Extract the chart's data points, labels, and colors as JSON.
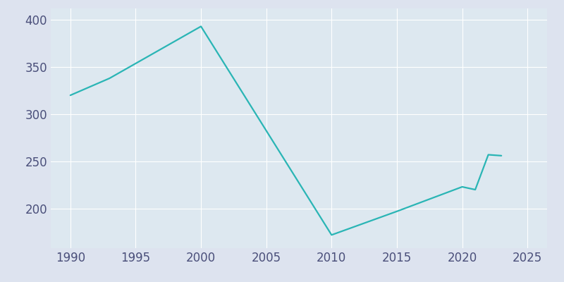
{
  "years": [
    1990,
    1993,
    2000,
    2010,
    2015,
    2020,
    2021,
    2022,
    2023
  ],
  "population": [
    320,
    338,
    393,
    172,
    197,
    223,
    220,
    257,
    256
  ],
  "line_color": "#2ab5b5",
  "fig_bg_color": "#dde3ef",
  "plot_bg_color": "#dde8f0",
  "xlabel": "",
  "ylabel": "",
  "xlim": [
    1988.5,
    2026.5
  ],
  "ylim": [
    158,
    412
  ],
  "xticks": [
    1990,
    1995,
    2000,
    2005,
    2010,
    2015,
    2020,
    2025
  ],
  "yticks": [
    200,
    250,
    300,
    350,
    400
  ],
  "grid_color": "#ffffff",
  "tick_color": "#4a4f7a",
  "tick_fontsize": 12,
  "linewidth": 1.6
}
